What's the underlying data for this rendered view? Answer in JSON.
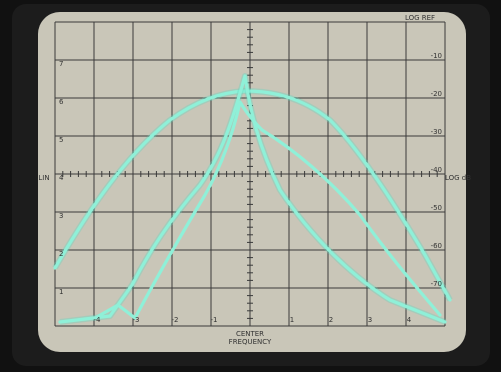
{
  "screen": {
    "header": "LOG REF",
    "lin_scale": {
      "label": "LIN",
      "ticks": [
        "7",
        "6",
        "5",
        "4",
        "3",
        "2",
        "1"
      ]
    },
    "log_scale": {
      "label": "LOG dB",
      "ticks": [
        "-10",
        "-20",
        "-30",
        "-40",
        "-50",
        "-60",
        "-70"
      ]
    },
    "frequency_ticks": [
      "-4",
      "-3",
      "-2",
      "-1",
      "1",
      "2",
      "3",
      "4"
    ],
    "center_label": [
      "CENTER",
      "FREQUENCY"
    ]
  }
}
